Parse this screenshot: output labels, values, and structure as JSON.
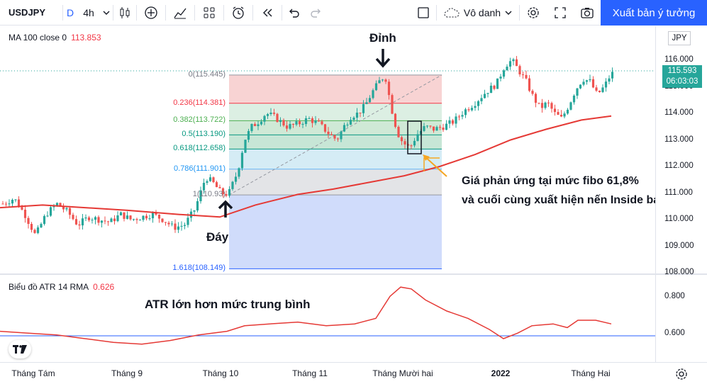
{
  "toolbar": {
    "symbol": "USDJPY",
    "interval_letter": "D",
    "timeframe": "4h",
    "layout_name": "Vô danh",
    "publish_label": "Xuất bản ý tưởng"
  },
  "main_pane": {
    "legend_name": "MA 100 close 0",
    "legend_value": "113.853",
    "currency": "JPY",
    "last_price": "115.593",
    "countdown": "06:03:03",
    "price_labels": [
      "116.000",
      "115.000",
      "114.000",
      "113.000",
      "112.000",
      "111.000",
      "110.000",
      "109.000",
      "108.000"
    ],
    "fib_levels": [
      {
        "label": "0(115.445)",
        "ratio": 0,
        "price": 115.445
      },
      {
        "label": "0.236(114.381)",
        "ratio": 0.236,
        "price": 114.381
      },
      {
        "label": "0.382(113.722)",
        "ratio": 0.382,
        "price": 113.722
      },
      {
        "label": "0.5(113.190)",
        "ratio": 0.5,
        "price": 113.19
      },
      {
        "label": "0.618(112.658)",
        "ratio": 0.618,
        "price": 112.658
      },
      {
        "label": "0.786(111.901)",
        "ratio": 0.786,
        "price": 111.901
      },
      {
        "label": "1(110.93)",
        "ratio": 1,
        "price": 110.93
      },
      {
        "label": "1.618(108.149)",
        "ratio": 1.618,
        "price": 108.149
      }
    ],
    "annotations": {
      "peak": "Đỉnh",
      "bottom": "Đáy",
      "note_line1": "Giá phản ứng tại mức fibo 61,8%",
      "note_line2": "và cuối cùng xuất hiện nến Inside bar"
    }
  },
  "atr_pane": {
    "legend_name": "Biểu đồ ATR 14 RMA",
    "legend_value": "0.626",
    "price_labels": [
      "0.800",
      "0.600"
    ],
    "annotation": "ATR lớn hơn mức trung bình"
  },
  "time_axis": {
    "labels": [
      "Tháng Tám",
      "Tháng 9",
      "Tháng 10",
      "Tháng 11",
      "Tháng Mười hai",
      "2022",
      "Tháng Hai"
    ]
  },
  "colors": {
    "up": "#26a69a",
    "down": "#ef5350",
    "ma": "#e53935",
    "atr": "#e53935",
    "accent": "#2962ff"
  }
}
